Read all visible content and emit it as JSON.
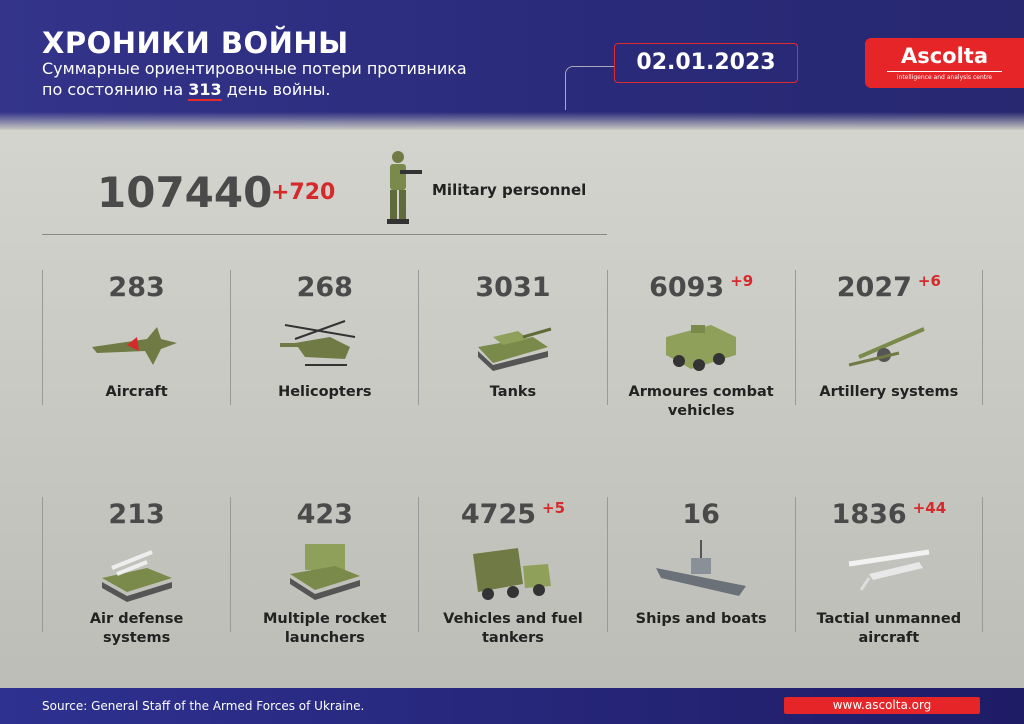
{
  "header": {
    "title": "ХРОНИКИ ВОЙНЫ",
    "subtitle_line1": "Суммарные ориентировочные потери противника",
    "subtitle_pre": "по состоянию на",
    "day": "313",
    "subtitle_post": "день войны.",
    "date": "02.01.2023",
    "logo_name": "Ascolta",
    "logo_tagline": "intelligence and analysis centre"
  },
  "personnel": {
    "value": "107440",
    "delta": "+720",
    "label": "Military personnel"
  },
  "row1": [
    {
      "value": "283",
      "delta": "",
      "label": "Aircraft",
      "icon": "aircraft-icon"
    },
    {
      "value": "268",
      "delta": "",
      "label": "Helicopters",
      "icon": "helicopter-icon"
    },
    {
      "value": "3031",
      "delta": "",
      "label": "Tanks",
      "icon": "tank-icon"
    },
    {
      "value": "6093",
      "delta": "+9",
      "label": "Armoures combat vehicles",
      "icon": "apc-icon"
    },
    {
      "value": "2027",
      "delta": "+6",
      "label": "Artillery systems",
      "icon": "artillery-icon"
    }
  ],
  "row2": [
    {
      "value": "213",
      "delta": "",
      "label": "Air defense systems",
      "icon": "air-defense-icon"
    },
    {
      "value": "423",
      "delta": "",
      "label": "Multiple rocket launchers",
      "icon": "rocket-launcher-icon"
    },
    {
      "value": "4725",
      "delta": "+5",
      "label": "Vehicles and fuel tankers",
      "icon": "truck-icon"
    },
    {
      "value": "16",
      "delta": "",
      "label": "Ships and boats",
      "icon": "ship-icon"
    },
    {
      "value": "1836",
      "delta": "+44",
      "label": "Tactial unmanned aircraft",
      "icon": "drone-icon"
    }
  ],
  "footer": {
    "source": "Source: General Staff of the Armed Forces of Ukraine.",
    "url": "www.ascolta.org"
  },
  "colors": {
    "header": "#2e3190",
    "accent": "#e52528",
    "military": "#7a8a4a"
  }
}
